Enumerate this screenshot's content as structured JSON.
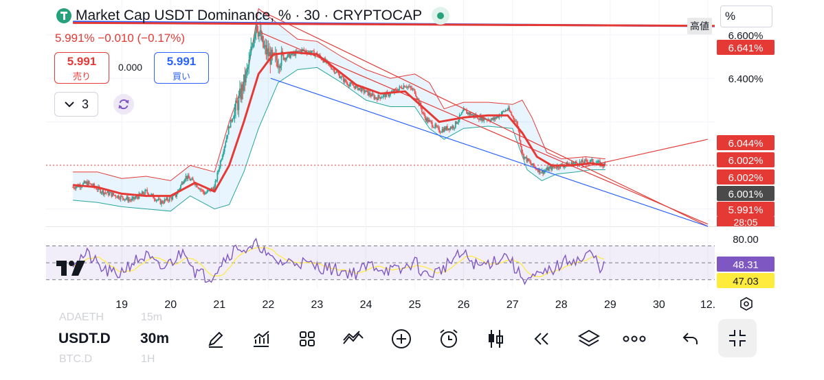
{
  "header": {
    "title": "Market Cap USDT Dominance, % · 30 · CRYPTOCAP",
    "ohlc_text": "5.991% −0.010 (−0.17%)",
    "high_label": "高値",
    "scale_button": "%"
  },
  "trade": {
    "sell_value": "5.991",
    "sell_label": "売り",
    "spread": "0.000",
    "buy_value": "5.991",
    "buy_label": "買い",
    "indicators_count": "3"
  },
  "bottom_bar": {
    "symbol": "USDT.D",
    "timeframe": "30m",
    "ghost_top_left": "ADAETH",
    "ghost_top_right": "15m",
    "ghost_bottom_left": "BTC.D",
    "ghost_bottom_right": "1H"
  },
  "colors": {
    "up": "#26a69a",
    "down": "#ef5350",
    "red_line": "#e53935",
    "blue_line": "#2962ff",
    "rsi": "#7e57c2",
    "rsi_ma": "#ffeb3b",
    "price_dot": "#131722"
  },
  "chart_data": {
    "type": "candlestick",
    "title": "Market Cap USDT Dominance, % · 30 · CRYPTOCAP",
    "y_unit": "%",
    "y_ticks": [
      "6.600%",
      "6.400%"
    ],
    "ylim": [
      5.72,
      6.76
    ],
    "x_ticks": [
      "19",
      "20",
      "21",
      "22",
      "23",
      "24",
      "25",
      "26",
      "27",
      "28",
      "29",
      "30",
      "12."
    ],
    "x_tick_values": [
      19,
      20,
      21,
      22,
      23,
      24,
      25,
      26,
      27,
      28,
      29,
      30,
      31
    ],
    "price_path": [
      [
        18.0,
        5.9
      ],
      [
        18.3,
        5.92
      ],
      [
        18.6,
        5.88
      ],
      [
        18.9,
        5.86
      ],
      [
        19.2,
        5.84
      ],
      [
        19.5,
        5.88
      ],
      [
        19.8,
        5.83
      ],
      [
        20.1,
        5.86
      ],
      [
        20.3,
        5.95
      ],
      [
        20.5,
        5.92
      ],
      [
        20.7,
        5.87
      ],
      [
        20.9,
        5.9
      ],
      [
        21.0,
        6.0
      ],
      [
        21.2,
        6.18
      ],
      [
        21.4,
        6.3
      ],
      [
        21.6,
        6.46
      ],
      [
        21.75,
        6.66
      ],
      [
        21.9,
        6.54
      ],
      [
        22.1,
        6.48
      ],
      [
        22.4,
        6.5
      ],
      [
        22.7,
        6.53
      ],
      [
        23.0,
        6.51
      ],
      [
        23.3,
        6.45
      ],
      [
        23.6,
        6.38
      ],
      [
        23.9,
        6.35
      ],
      [
        24.2,
        6.31
      ],
      [
        24.5,
        6.33
      ],
      [
        24.8,
        6.37
      ],
      [
        25.0,
        6.34
      ],
      [
        25.2,
        6.22
      ],
      [
        25.5,
        6.16
      ],
      [
        25.8,
        6.18
      ],
      [
        26.0,
        6.25
      ],
      [
        26.3,
        6.22
      ],
      [
        26.6,
        6.21
      ],
      [
        26.9,
        6.26
      ],
      [
        27.1,
        6.19
      ],
      [
        27.2,
        6.05
      ],
      [
        27.4,
        6.0
      ],
      [
        27.6,
        5.97
      ],
      [
        27.8,
        5.99
      ],
      [
        28.0,
        6.0
      ],
      [
        28.3,
        6.01
      ],
      [
        28.6,
        6.02
      ],
      [
        28.9,
        6.0
      ]
    ],
    "ma_path": [
      [
        18.0,
        5.91
      ],
      [
        18.5,
        5.9
      ],
      [
        19.0,
        5.87
      ],
      [
        19.5,
        5.86
      ],
      [
        20.0,
        5.86
      ],
      [
        20.5,
        5.92
      ],
      [
        20.9,
        5.88
      ],
      [
        21.2,
        6.0
      ],
      [
        21.5,
        6.2
      ],
      [
        21.8,
        6.42
      ],
      [
        22.1,
        6.51
      ],
      [
        22.5,
        6.52
      ],
      [
        23.0,
        6.51
      ],
      [
        23.4,
        6.44
      ],
      [
        23.8,
        6.37
      ],
      [
        24.3,
        6.33
      ],
      [
        24.8,
        6.34
      ],
      [
        25.1,
        6.28
      ],
      [
        25.5,
        6.2
      ],
      [
        26.0,
        6.22
      ],
      [
        26.5,
        6.23
      ],
      [
        26.9,
        6.23
      ],
      [
        27.2,
        6.15
      ],
      [
        27.5,
        6.04
      ],
      [
        27.8,
        6.0
      ],
      [
        28.2,
        6.0
      ],
      [
        28.6,
        6.01
      ],
      [
        28.9,
        6.0
      ]
    ],
    "bb_upper": [
      [
        18.0,
        5.97
      ],
      [
        18.5,
        5.97
      ],
      [
        19.0,
        5.94
      ],
      [
        19.5,
        5.95
      ],
      [
        20.0,
        5.93
      ],
      [
        20.4,
        6.0
      ],
      [
        20.9,
        5.97
      ],
      [
        21.2,
        6.2
      ],
      [
        21.6,
        6.45
      ],
      [
        21.8,
        6.72
      ],
      [
        22.2,
        6.65
      ],
      [
        22.6,
        6.58
      ],
      [
        23.0,
        6.57
      ],
      [
        23.5,
        6.5
      ],
      [
        24.0,
        6.44
      ],
      [
        24.5,
        6.4
      ],
      [
        25.0,
        6.42
      ],
      [
        25.3,
        6.38
      ],
      [
        25.6,
        6.26
      ],
      [
        26.0,
        6.29
      ],
      [
        26.5,
        6.29
      ],
      [
        27.0,
        6.28
      ],
      [
        27.2,
        6.3
      ],
      [
        27.4,
        6.22
      ],
      [
        27.7,
        6.06
      ],
      [
        28.0,
        6.03
      ],
      [
        28.5,
        6.04
      ],
      [
        28.9,
        6.03
      ]
    ],
    "bb_lower": [
      [
        18.0,
        5.84
      ],
      [
        18.5,
        5.83
      ],
      [
        19.0,
        5.81
      ],
      [
        19.5,
        5.8
      ],
      [
        20.0,
        5.79
      ],
      [
        20.4,
        5.86
      ],
      [
        20.9,
        5.8
      ],
      [
        21.2,
        5.82
      ],
      [
        21.5,
        5.97
      ],
      [
        21.8,
        6.17
      ],
      [
        22.2,
        6.38
      ],
      [
        22.6,
        6.44
      ],
      [
        23.0,
        6.45
      ],
      [
        23.5,
        6.38
      ],
      [
        24.0,
        6.3
      ],
      [
        24.5,
        6.27
      ],
      [
        25.0,
        6.27
      ],
      [
        25.3,
        6.17
      ],
      [
        25.6,
        6.12
      ],
      [
        26.0,
        6.17
      ],
      [
        26.5,
        6.18
      ],
      [
        27.0,
        6.17
      ],
      [
        27.3,
        5.98
      ],
      [
        27.6,
        5.93
      ],
      [
        27.9,
        5.96
      ],
      [
        28.3,
        5.97
      ],
      [
        28.6,
        5.98
      ],
      [
        28.9,
        5.98
      ]
    ],
    "trendlines": [
      {
        "color": "red",
        "from": [
          21.85,
          6.71
        ],
        "to": [
          31.0,
          5.72
        ]
      },
      {
        "color": "red",
        "from": [
          21.85,
          6.61
        ],
        "to": [
          31.0,
          5.73
        ]
      },
      {
        "color": "red",
        "from": [
          28.4,
          5.99
        ],
        "to": [
          31.0,
          6.12
        ]
      },
      {
        "color": "blue",
        "from": [
          22.05,
          6.4
        ],
        "to": [
          31.0,
          5.72
        ]
      },
      {
        "color": "blue",
        "from": [
          18.0,
          6.66
        ],
        "to": [
          31.0,
          6.64
        ]
      },
      {
        "color": "red",
        "from": [
          18.0,
          6.655
        ],
        "to": [
          31.0,
          6.641
        ]
      }
    ],
    "price_labels": [
      {
        "text": "6.641%",
        "value": 6.641,
        "color": "#e53935"
      },
      {
        "text": "6.044%",
        "value": 6.044,
        "color": "#e53935"
      },
      {
        "text": "6.002%",
        "value": 6.002,
        "color": "#e53935"
      },
      {
        "text": "6.002%",
        "value": 6.002,
        "color": "#e53935"
      },
      {
        "text": "6.001%",
        "value": 6.001,
        "color": "#4a4a4a"
      },
      {
        "text": "5.991%",
        "value": 5.991,
        "color": "#e53935"
      }
    ],
    "countdown": "28:05",
    "last_price_line": 6.001,
    "rsi": {
      "upper_band": 70,
      "lower_band": 30,
      "mid": 50,
      "ylim": [
        20,
        85
      ],
      "tick": "80.00",
      "value": "48.31",
      "ma_value": "47.03",
      "path": [
        [
          18.0,
          52
        ],
        [
          18.3,
          60
        ],
        [
          18.6,
          42
        ],
        [
          18.9,
          35
        ],
        [
          19.2,
          50
        ],
        [
          19.5,
          58
        ],
        [
          19.8,
          42
        ],
        [
          20.1,
          55
        ],
        [
          20.3,
          66
        ],
        [
          20.5,
          40
        ],
        [
          20.8,
          32
        ],
        [
          21.1,
          55
        ],
        [
          21.4,
          70
        ],
        [
          21.6,
          62
        ],
        [
          21.8,
          74
        ],
        [
          22.0,
          55
        ],
        [
          22.3,
          50
        ],
        [
          22.6,
          52
        ],
        [
          22.9,
          46
        ],
        [
          23.2,
          44
        ],
        [
          23.5,
          40
        ],
        [
          23.8,
          38
        ],
        [
          24.1,
          48
        ],
        [
          24.4,
          42
        ],
        [
          24.7,
          40
        ],
        [
          25.0,
          52
        ],
        [
          25.2,
          35
        ],
        [
          25.5,
          40
        ],
        [
          25.8,
          55
        ],
        [
          26.0,
          60
        ],
        [
          26.3,
          45
        ],
        [
          26.6,
          52
        ],
        [
          26.9,
          60
        ],
        [
          27.1,
          38
        ],
        [
          27.3,
          30
        ],
        [
          27.6,
          35
        ],
        [
          27.9,
          45
        ],
        [
          28.2,
          55
        ],
        [
          28.4,
          52
        ],
        [
          28.6,
          62
        ],
        [
          28.8,
          45
        ],
        [
          28.9,
          48
        ]
      ]
    }
  }
}
